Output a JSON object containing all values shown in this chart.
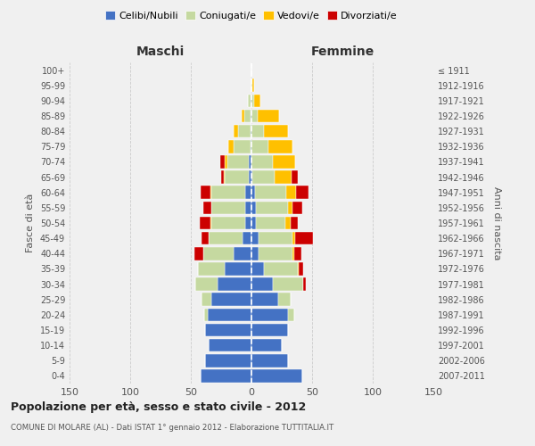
{
  "age_groups": [
    "0-4",
    "5-9",
    "10-14",
    "15-19",
    "20-24",
    "25-29",
    "30-34",
    "35-39",
    "40-44",
    "45-49",
    "50-54",
    "55-59",
    "60-64",
    "65-69",
    "70-74",
    "75-79",
    "80-84",
    "85-89",
    "90-94",
    "95-99",
    "100+"
  ],
  "birth_years": [
    "2007-2011",
    "2002-2006",
    "1997-2001",
    "1992-1996",
    "1987-1991",
    "1982-1986",
    "1977-1981",
    "1972-1976",
    "1967-1971",
    "1962-1966",
    "1957-1961",
    "1952-1956",
    "1947-1951",
    "1942-1946",
    "1937-1941",
    "1932-1936",
    "1927-1931",
    "1922-1926",
    "1917-1921",
    "1912-1916",
    "≤ 1911"
  ],
  "maschi": {
    "celibi": [
      42,
      38,
      35,
      38,
      36,
      33,
      28,
      22,
      15,
      7,
      5,
      5,
      5,
      2,
      2,
      1,
      1,
      1,
      1,
      0,
      0
    ],
    "coniugati": [
      0,
      0,
      0,
      0,
      3,
      8,
      18,
      22,
      25,
      28,
      28,
      28,
      28,
      20,
      18,
      14,
      10,
      5,
      2,
      0,
      0
    ],
    "vedovi": [
      0,
      0,
      0,
      0,
      0,
      0,
      0,
      0,
      0,
      0,
      1,
      0,
      1,
      1,
      2,
      4,
      4,
      2,
      0,
      0,
      0
    ],
    "divorziati": [
      0,
      0,
      0,
      0,
      0,
      0,
      0,
      0,
      7,
      6,
      9,
      7,
      8,
      2,
      4,
      0,
      0,
      0,
      0,
      0,
      0
    ]
  },
  "femmine": {
    "nubili": [
      42,
      30,
      25,
      30,
      30,
      22,
      18,
      10,
      6,
      6,
      4,
      4,
      3,
      1,
      0,
      0,
      0,
      0,
      0,
      0,
      0
    ],
    "coniugate": [
      0,
      0,
      0,
      0,
      5,
      10,
      25,
      28,
      28,
      28,
      24,
      26,
      26,
      18,
      18,
      14,
      10,
      5,
      2,
      1,
      0
    ],
    "vedove": [
      0,
      0,
      0,
      0,
      0,
      0,
      0,
      1,
      1,
      2,
      4,
      4,
      8,
      14,
      18,
      20,
      20,
      18,
      5,
      1,
      0
    ],
    "divorziate": [
      0,
      0,
      0,
      0,
      0,
      0,
      2,
      4,
      6,
      15,
      6,
      8,
      10,
      5,
      0,
      0,
      0,
      0,
      0,
      0,
      0
    ]
  },
  "colors": {
    "celibi": "#4472c4",
    "coniugati": "#c5d9a0",
    "vedovi": "#ffc000",
    "divorziati": "#cc0000"
  },
  "title": "Popolazione per età, sesso e stato civile - 2012",
  "subtitle": "COMUNE DI MOLARE (AL) - Dati ISTAT 1° gennaio 2012 - Elaborazione TUTTITALIA.IT",
  "xlabel_left": "Maschi",
  "xlabel_right": "Femmine",
  "ylabel_left": "Fasce di età",
  "ylabel_right": "Anni di nascita",
  "xlim": 150,
  "background_color": "#f0f0f0",
  "grid_color": "#cccccc"
}
